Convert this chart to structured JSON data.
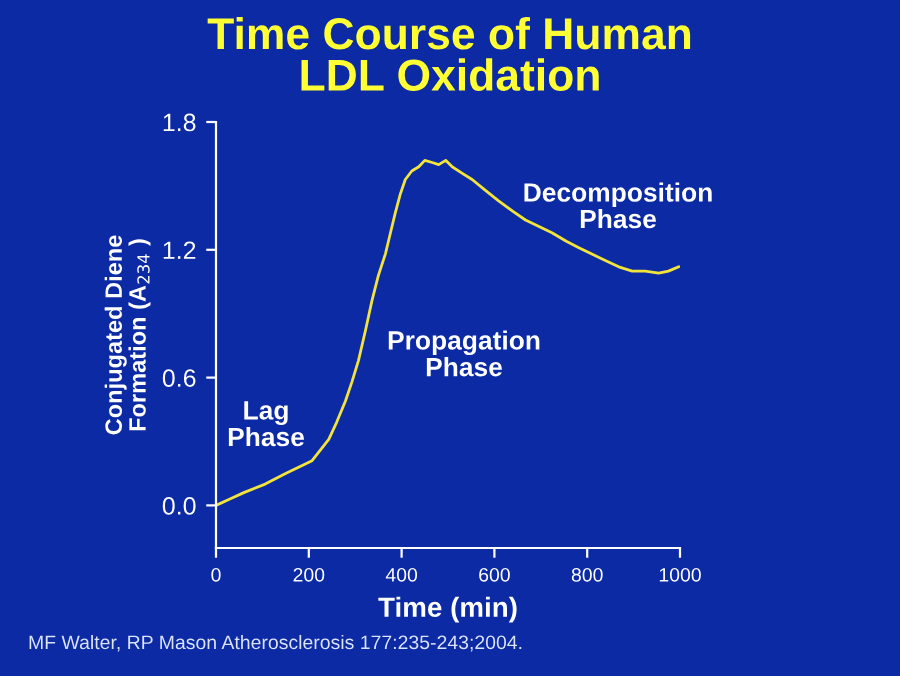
{
  "chart_data": {
    "type": "line",
    "title": "Time Course of Human\nLDL Oxidation",
    "xlabel": "Time (min)",
    "ylabel": "Conjugated Diene\nFormation (A$_{234}$ )",
    "x": [
      0,
      30,
      60,
      106,
      150,
      207,
      243,
      260,
      279,
      293,
      307,
      322,
      336,
      350,
      365,
      376,
      386,
      397,
      408,
      422,
      437,
      450,
      466,
      480,
      495,
      509,
      530,
      552,
      580,
      609,
      640,
      667,
      695,
      724,
      755,
      782,
      810,
      839,
      868,
      897,
      925,
      954,
      975,
      997
    ],
    "series": [
      {
        "color": "#f2e43a",
        "values": [
          0.0,
          0.03,
          0.06,
          0.1,
          0.15,
          0.21,
          0.31,
          0.39,
          0.49,
          0.58,
          0.68,
          0.82,
          0.96,
          1.08,
          1.18,
          1.28,
          1.37,
          1.46,
          1.53,
          1.57,
          1.59,
          1.62,
          1.61,
          1.6,
          1.62,
          1.59,
          1.56,
          1.53,
          1.48,
          1.43,
          1.38,
          1.34,
          1.31,
          1.28,
          1.24,
          1.21,
          1.18,
          1.15,
          1.12,
          1.1,
          1.1,
          1.09,
          1.1,
          1.12
        ]
      }
    ],
    "xlim": [
      0,
      1000
    ],
    "xticks": [
      0,
      200,
      400,
      600,
      800,
      1000
    ],
    "ylim": [
      -0.2,
      1.8
    ],
    "yticks": [
      {
        "value": 0.0,
        "label": "0.0"
      },
      0.6,
      1.2,
      1.8
    ],
    "grid": false,
    "legend": false,
    "marker": "none",
    "line_style": "solid",
    "annotations": [
      "Lag\nPhase",
      "Propagation\nPhase",
      "Decomposition\nPhase",
      "MF Walter, RP Mason Atherosclerosis 177:235-243;2004."
    ]
  }
}
